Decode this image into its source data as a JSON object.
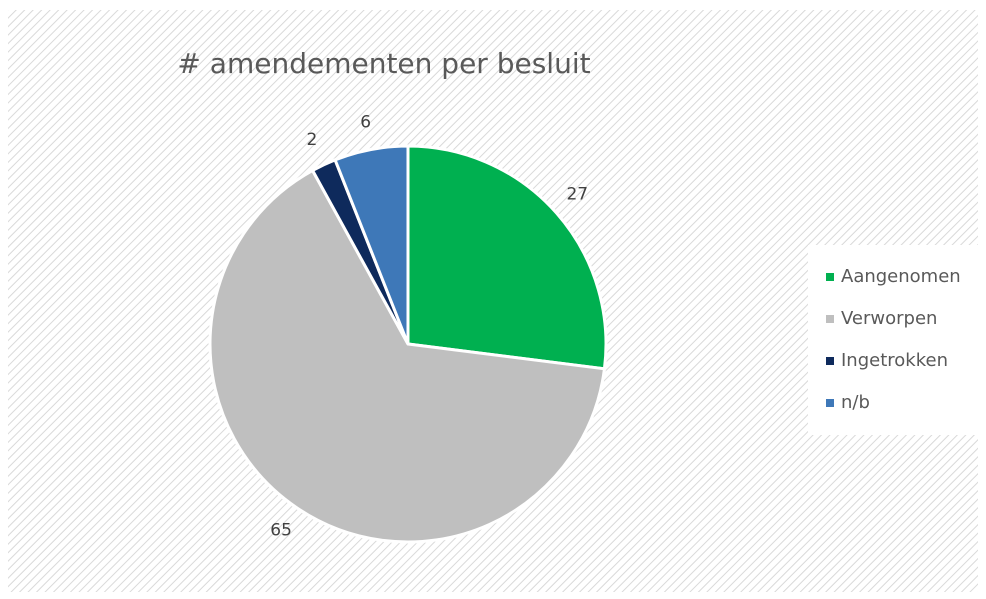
{
  "chart_data": {
    "type": "pie",
    "title": "# amendementen per besluit",
    "categories": [
      "Aangenomen",
      "Verworpen",
      "Ingetrokken",
      "n/b"
    ],
    "values": [
      27,
      65,
      2,
      6
    ],
    "colors": [
      "#00b050",
      "#bfbfbf",
      "#0e2a5c",
      "#3e78b8"
    ],
    "legend": "right"
  }
}
